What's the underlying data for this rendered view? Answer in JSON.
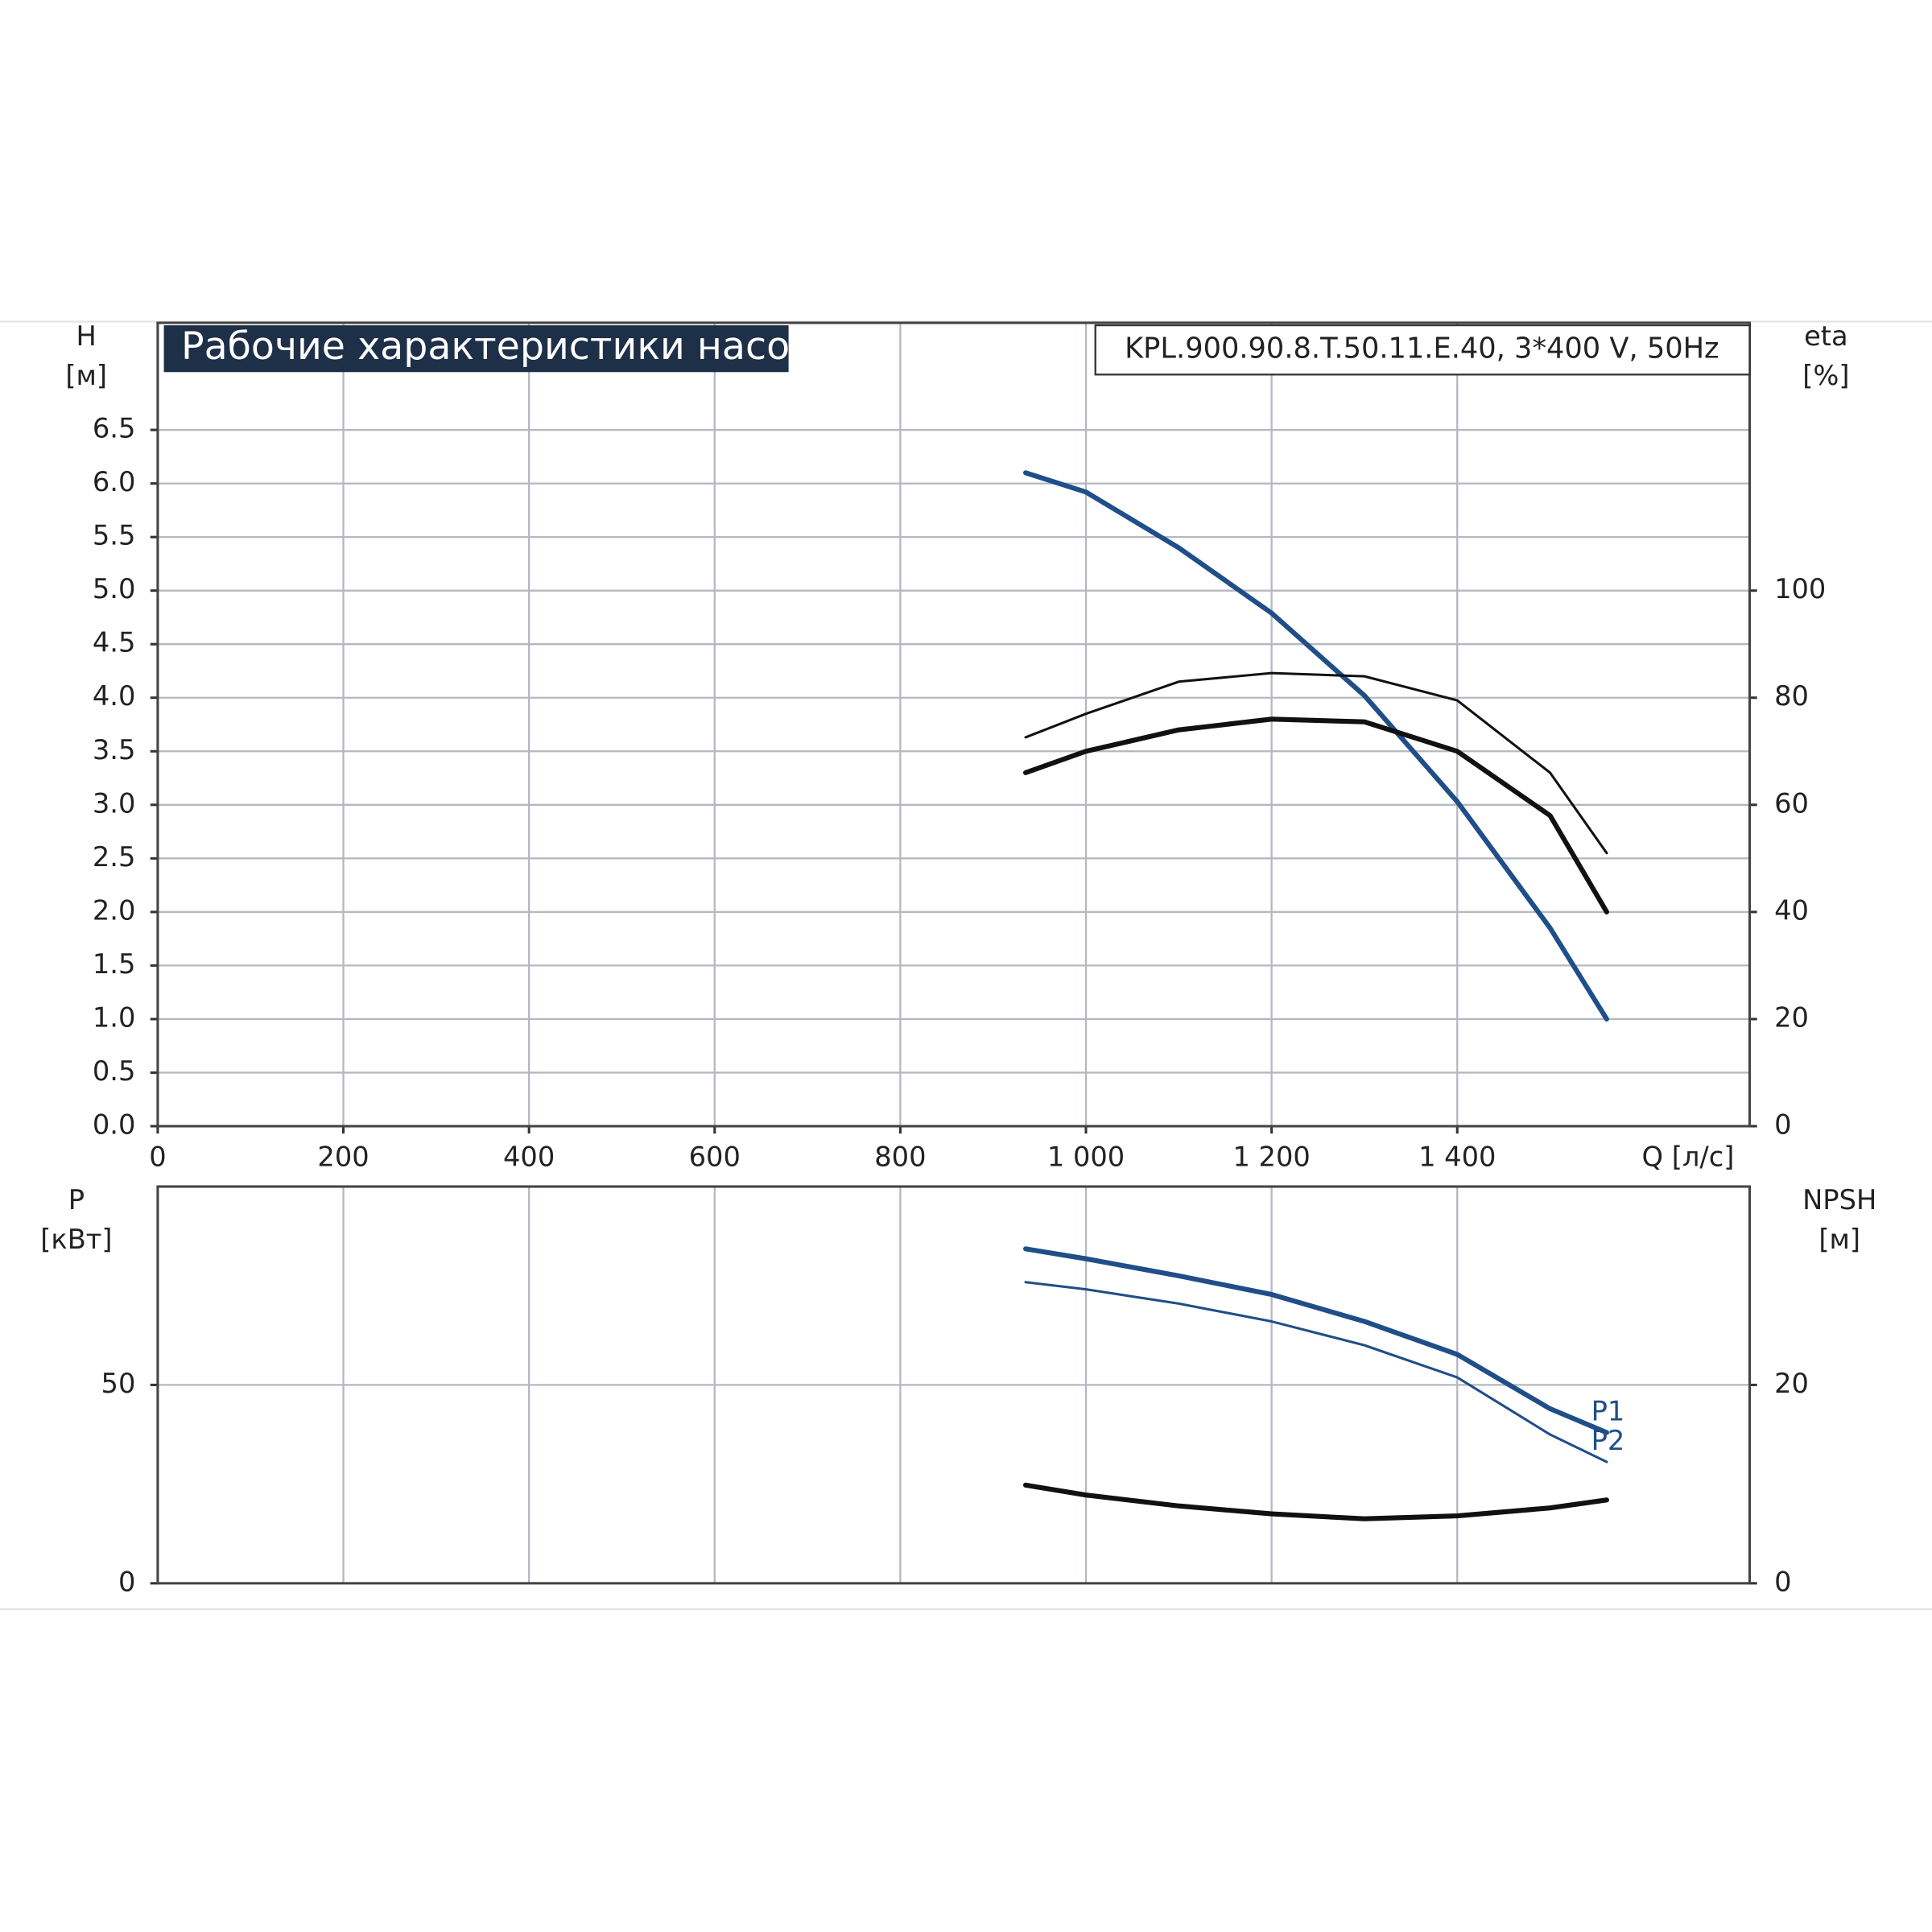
{
  "chart_data": [
    {
      "type": "line",
      "title": "Рабочие характеристики насоса",
      "subtitle": "KPL.900.90.8.T.50.11.E.40, 3*400 V, 50Hz",
      "ylabel": [
        "H",
        "[м]"
      ],
      "y2label": [
        "eta",
        "[%]"
      ],
      "xlabel": "Q [л/с]",
      "xlim": [
        0,
        1715
      ],
      "xticks": [
        0,
        200,
        400,
        600,
        800,
        {
          "value": 1000,
          "label": "1 000"
        },
        {
          "value": 1200,
          "label": "1 200"
        },
        {
          "value": 1400,
          "label": "1 400"
        }
      ],
      "ylim": [
        0,
        7.5
      ],
      "yticks": [
        {
          "value": 0,
          "label": "0.0"
        },
        0.5,
        {
          "value": 1,
          "label": "1.0"
        },
        1.5,
        {
          "value": 2,
          "label": "2.0"
        },
        2.5,
        {
          "value": 3,
          "label": "3.0"
        },
        3.5,
        {
          "value": 4,
          "label": "4.0"
        },
        4.5,
        {
          "value": 5,
          "label": "5.0"
        },
        5.5,
        {
          "value": 6,
          "label": "6.0"
        },
        6.5
      ],
      "y2lim": [
        0,
        150
      ],
      "y2ticks": [
        0,
        20,
        40,
        60,
        80,
        100
      ],
      "grid": true,
      "x": [
        935,
        1000,
        1100,
        1200,
        1300,
        1400,
        1500,
        1561
      ],
      "series": [
        {
          "color": "#1f4e89",
          "width": 4,
          "values": [
            6.1,
            5.92,
            5.4,
            4.79,
            4.02,
            3.03,
            1.85,
            1.0
          ]
        },
        {
          "color": "#111111",
          "width": 4,
          "axis": "y2",
          "values": [
            66,
            70,
            74,
            76,
            75.5,
            70,
            58,
            40
          ]
        },
        {
          "color": "#111111",
          "width": 2,
          "axis": "y2",
          "values": [
            72.6,
            77,
            83,
            84.6,
            84,
            79.5,
            66,
            51
          ]
        }
      ]
    },
    {
      "type": "line",
      "ylabel": [
        "P",
        "[кВт]"
      ],
      "y2label": [
        "NPSH",
        "[м]"
      ],
      "xlim": [
        0,
        1715
      ],
      "ylim": [
        0,
        100
      ],
      "yticks": [
        0,
        50
      ],
      "y2lim": [
        0,
        40
      ],
      "y2ticks": [
        0,
        20
      ],
      "grid": true,
      "x": [
        935,
        1000,
        1100,
        1200,
        1300,
        1400,
        1500,
        1561
      ],
      "series": [
        {
          "name": "P1",
          "color": "#1f4e89",
          "width": 4,
          "values": [
            84.3,
            81.8,
            77.5,
            72.8,
            66,
            57.7,
            44,
            38
          ]
        },
        {
          "name": "P2",
          "color": "#1f4e89",
          "width": 2,
          "values": [
            75.9,
            74.1,
            70.5,
            66,
            60,
            51.9,
            37.5,
            30.6
          ]
        },
        {
          "color": "#111111",
          "width": 4,
          "axis": "y2",
          "values": [
            9.9,
            8.9,
            7.8,
            7.0,
            6.5,
            6.8,
            7.6,
            8.4
          ]
        }
      ]
    }
  ]
}
